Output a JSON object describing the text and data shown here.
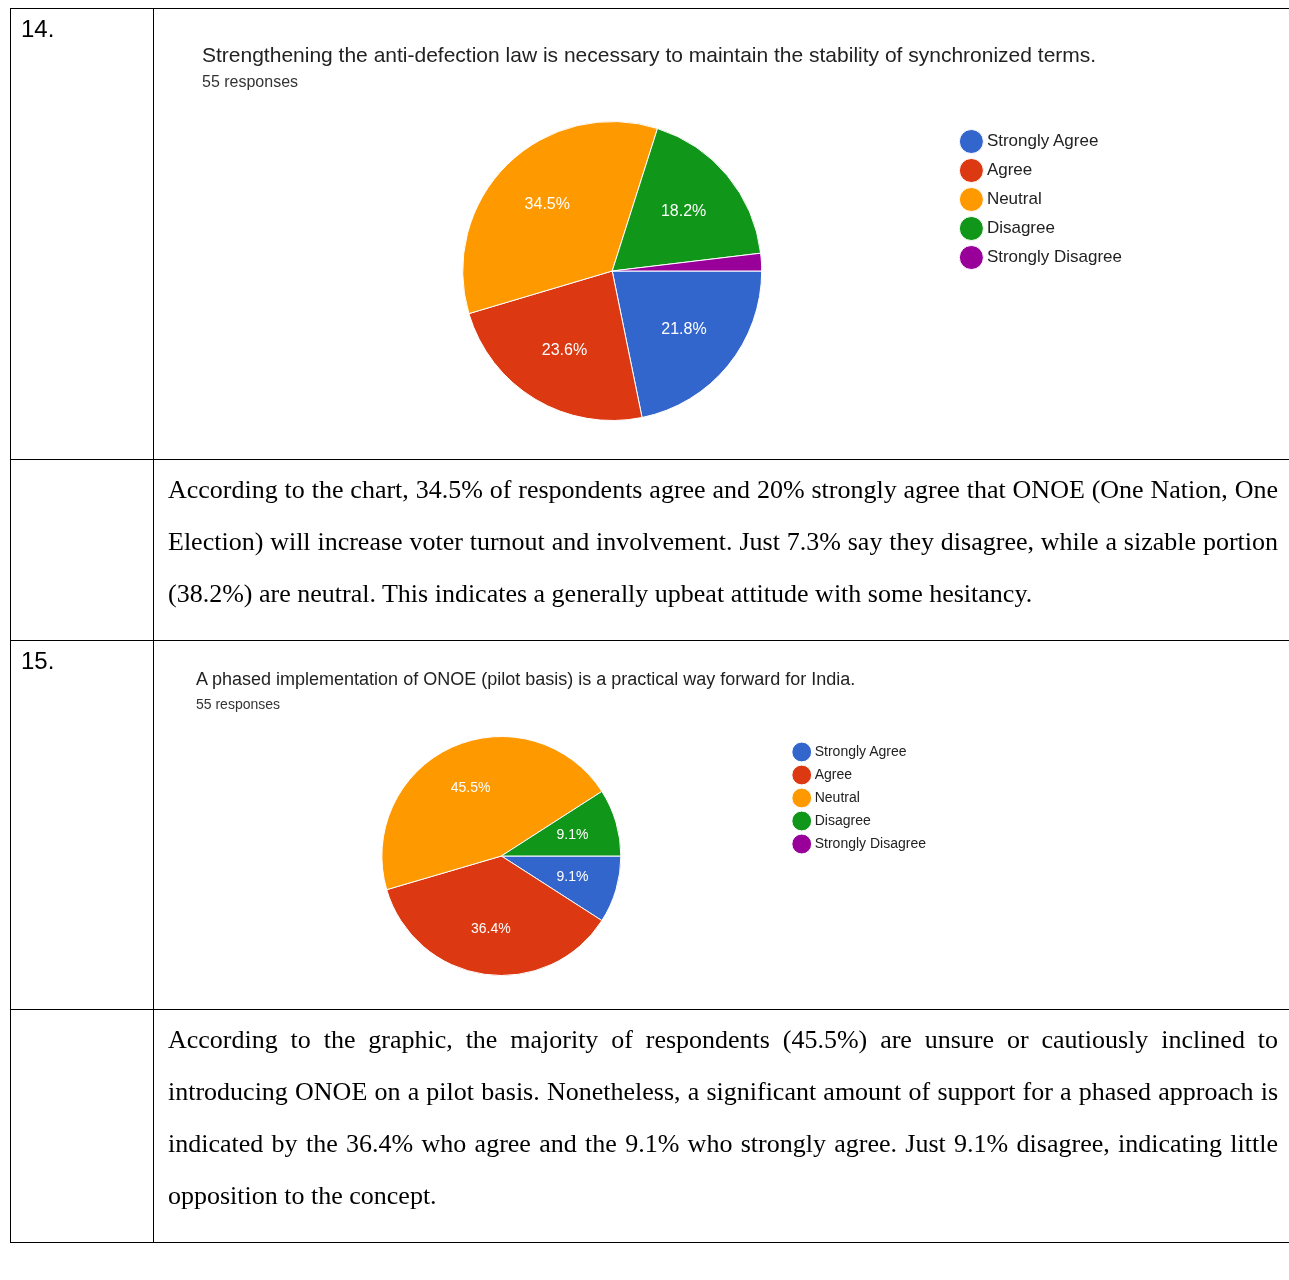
{
  "chart_data": [
    {
      "type": "pie",
      "title": "Strengthening the anti-defection law is necessary to maintain the stability of synchronized terms.",
      "subtitle": "55 responses",
      "categories": [
        "Strongly Agree",
        "Agree",
        "Neutral",
        "Disagree",
        "Strongly Disagree"
      ],
      "values": [
        21.8,
        23.6,
        34.5,
        18.2,
        1.9
      ],
      "colors": [
        "#3366cc",
        "#dc3912",
        "#ff9900",
        "#109618",
        "#990099"
      ],
      "value_labels": [
        "21.8%",
        "23.6%",
        "34.5%",
        "18.2%",
        null
      ],
      "legend": "right",
      "annotations": [
        "14.",
        "According to the chart, 34.5% of respondents agree and 20% strongly agree that ONOE (One Nation, One Election) will increase voter turnout and involvement. Just 7.3% say they disagree, while a sizable portion (38.2%) are neutral. This indicates a generally upbeat attitude with some hesitancy."
      ]
    },
    {
      "type": "pie",
      "title": "A phased implementation of ONOE (pilot basis) is a practical way forward for India.",
      "subtitle": "55 responses",
      "categories": [
        "Strongly Agree",
        "Agree",
        "Neutral",
        "Disagree",
        "Strongly Disagree"
      ],
      "values": [
        9.1,
        36.4,
        45.5,
        9.1,
        0
      ],
      "colors": [
        "#3366cc",
        "#dc3912",
        "#ff9900",
        "#109618",
        "#990099"
      ],
      "value_labels": [
        "9.1%",
        "36.4%",
        "45.5%",
        "9.1%",
        null
      ],
      "legend": "right",
      "annotations": [
        "15.",
        "According to the graphic, the majority of respondents (45.5%) are unsure or cautiously inclined to introducing ONOE on a pilot basis. Nonetheless, a significant amount of support for a phased approach is indicated by the 36.4% who agree and the 9.1% who strongly agree. Just 9.1% disagree, indicating little opposition to the concept."
      ]
    }
  ]
}
